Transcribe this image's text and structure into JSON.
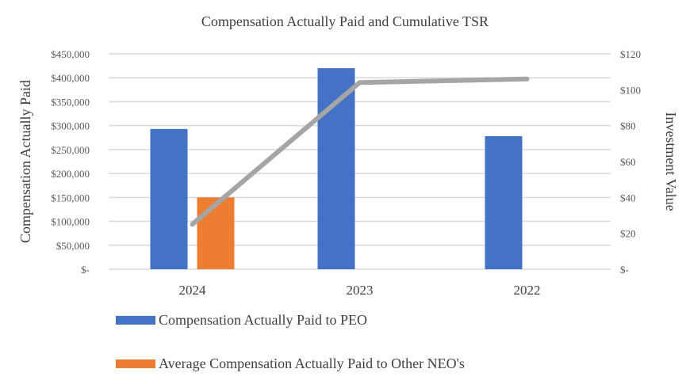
{
  "chart_data": {
    "type": "bar",
    "title": "Compensation Actually Paid and Cumulative TSR",
    "ylabel": "Compensation Actually Paid",
    "y2label": "Investment Value",
    "categories": [
      "2024",
      "2023",
      "2022"
    ],
    "ylim": [
      0,
      450000
    ],
    "y2lim": [
      0,
      120
    ],
    "yticks": [
      "$-",
      "$50,000",
      "$100,000",
      "$150,000",
      "$200,000",
      "$250,000",
      "$300,000",
      "$350,000",
      "$400,000",
      "$450,000"
    ],
    "y2ticks": [
      "$-",
      "$20",
      "$40",
      "$60",
      "$80",
      "$100",
      "$120"
    ],
    "grid": true,
    "legend_placement": "bottom",
    "series": [
      {
        "name": "Compensation Actually Paid to PEO",
        "type": "bar",
        "axis": "left",
        "color": "#4472C4",
        "values": [
          293000,
          420000,
          278000
        ]
      },
      {
        "name": "Average Compensation Actually Paid to Other NEO's",
        "type": "bar",
        "axis": "left",
        "color": "#ED7D31",
        "values": [
          150000,
          null,
          null
        ]
      },
      {
        "type": "line",
        "axis": "right",
        "color": "#A5A5A5",
        "values": [
          25,
          104,
          106
        ]
      }
    ]
  }
}
